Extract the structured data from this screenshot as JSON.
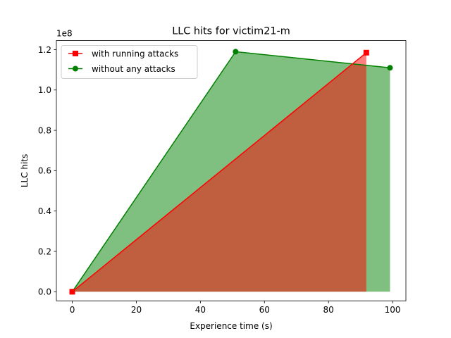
{
  "chart_data": {
    "type": "area",
    "title": "LLC hits for victim21-m",
    "xlabel": "Experience time (s)",
    "ylabel": "LLC hits",
    "y_offset_label": "1e8",
    "y_scale": 100000000,
    "xlim": [
      -4.96,
      104.16
    ],
    "ylim": [
      -4500000,
      124500000
    ],
    "xticks": [
      0,
      20,
      40,
      60,
      80,
      100
    ],
    "xtick_labels": [
      "0",
      "20",
      "40",
      "60",
      "80",
      "100"
    ],
    "yticks": [
      0,
      20000000,
      40000000,
      60000000,
      80000000,
      100000000,
      120000000
    ],
    "ytick_labels": [
      "0.0",
      "0.2",
      "0.4",
      "0.6",
      "0.8",
      "1.0",
      "1.2"
    ],
    "grid": false,
    "legend_position": "upper-left",
    "series": [
      {
        "name": "with running attacks",
        "color": "#ff0000",
        "fill_color": "#ff0000",
        "marker": "square",
        "x": [
          0,
          91.8
        ],
        "y": [
          0,
          118500000
        ]
      },
      {
        "name": "without any attacks",
        "color": "#008000",
        "fill_color": "#008000",
        "marker": "circle",
        "x": [
          0,
          51,
          99.2
        ],
        "y": [
          0,
          119000000,
          111000000
        ]
      }
    ]
  }
}
